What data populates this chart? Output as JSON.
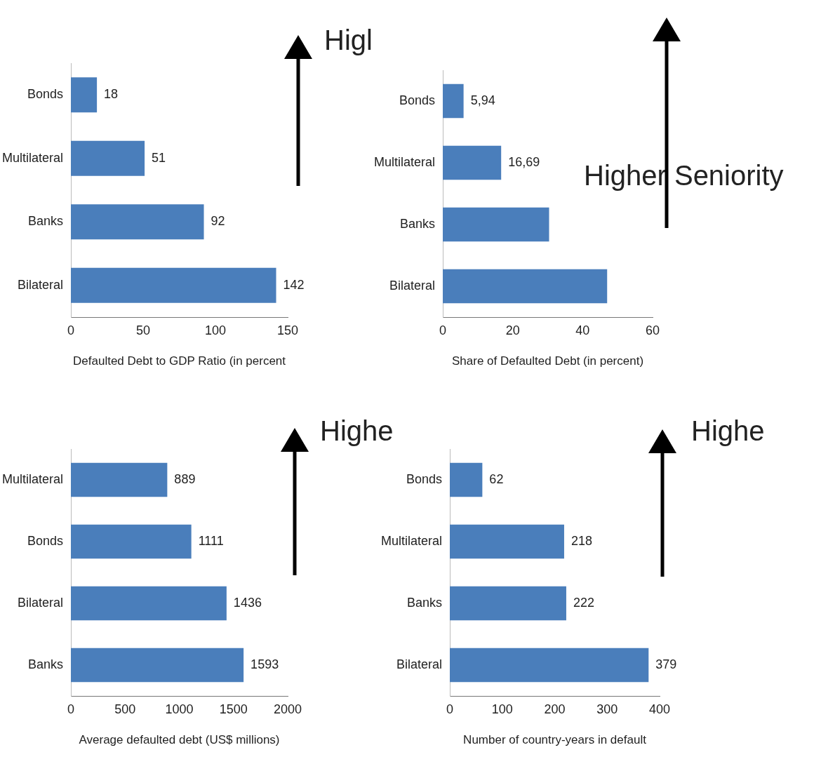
{
  "chart_data": [
    {
      "type": "bar",
      "orientation": "horizontal",
      "categories": [
        "Bonds",
        "Multilateral",
        "Banks",
        "Bilateral"
      ],
      "values": [
        18,
        51,
        92,
        142
      ],
      "color": "#4a7ebb",
      "xlim": [
        0,
        150
      ],
      "xticks": [
        0,
        50,
        100,
        150
      ],
      "xlabel": "Defaulted Debt to GDP Ratio (in percent",
      "data_labels": true,
      "grid": false,
      "annotations": [
        "Higl"
      ]
    },
    {
      "type": "bar",
      "orientation": "horizontal",
      "categories": [
        "Bonds",
        "Multilateral",
        "Banks",
        "Bilateral"
      ],
      "values": [
        5.94,
        16.69,
        30.4,
        47.0
      ],
      "value_labels": [
        "5,94",
        "16,69",
        null,
        null
      ],
      "color": "#4a7ebb",
      "xlim": [
        0,
        60
      ],
      "xticks": [
        0,
        20,
        40,
        60
      ],
      "xlabel": "Share of Defaulted Debt (in percent)",
      "grid": false,
      "annotations": [
        "Higher Seniority"
      ]
    },
    {
      "type": "bar",
      "orientation": "horizontal",
      "categories": [
        "Multilateral",
        "Bonds",
        "Bilateral",
        "Banks"
      ],
      "values": [
        889,
        1111,
        1436,
        1593
      ],
      "color": "#4a7ebb",
      "xlim": [
        0,
        2000
      ],
      "xticks": [
        0,
        500,
        1000,
        1500,
        2000
      ],
      "xlabel": "Average defaulted debt (US$ millions)",
      "data_labels": true,
      "grid": false,
      "annotations": [
        "Highe"
      ]
    },
    {
      "type": "bar",
      "orientation": "horizontal",
      "categories": [
        "Bonds",
        "Multilateral",
        "Banks",
        "Bilateral"
      ],
      "values": [
        62,
        218,
        222,
        379
      ],
      "color": "#4a7ebb",
      "xlim": [
        0,
        400
      ],
      "xticks": [
        0,
        100,
        200,
        300,
        400
      ],
      "xlabel": "Number of country-years in default",
      "data_labels": true,
      "grid": false,
      "annotations": [
        "Highe"
      ]
    }
  ]
}
